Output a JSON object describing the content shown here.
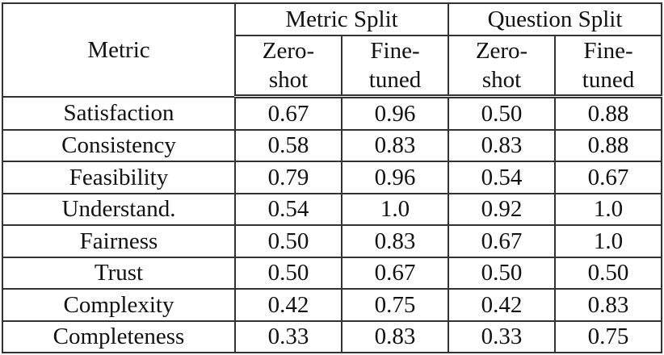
{
  "table": {
    "header": {
      "metric_label": "Metric",
      "groups": [
        {
          "label": "Metric Split",
          "sub": [
            "Zero-\nshot",
            "Fine-\ntuned"
          ]
        },
        {
          "label": "Question Split",
          "sub": [
            "Zero-\nshot",
            "Fine-\ntuned"
          ]
        }
      ],
      "sub_lines": {
        "zero_1": "Zero-",
        "zero_2": "shot",
        "fine_1": "Fine-",
        "fine_2": "tuned"
      }
    },
    "rows": [
      {
        "metric": "Satisfaction",
        "values": [
          "0.67",
          "0.96",
          "0.50",
          "0.88"
        ],
        "bold": [
          false,
          true,
          false,
          true
        ]
      },
      {
        "metric": "Consistency",
        "values": [
          "0.58",
          "0.83",
          "0.83",
          "0.88"
        ],
        "bold": [
          false,
          false,
          false,
          false
        ]
      },
      {
        "metric": "Feasibility",
        "values": [
          "0.79",
          "0.96",
          "0.54",
          "0.67"
        ],
        "bold": [
          false,
          false,
          false,
          false
        ]
      },
      {
        "metric": "Understand.",
        "values": [
          "0.54",
          "1.0",
          "0.92",
          "1.0"
        ],
        "bold": [
          false,
          true,
          false,
          false
        ]
      },
      {
        "metric": "Fairness",
        "values": [
          "0.50",
          "0.83",
          "0.67",
          "1.0"
        ],
        "bold": [
          false,
          true,
          false,
          true
        ]
      },
      {
        "metric": "Trust",
        "values": [
          "0.50",
          "0.67",
          "0.50",
          "0.50"
        ],
        "bold": [
          false,
          false,
          false,
          false
        ]
      },
      {
        "metric": "Complexity",
        "values": [
          "0.42",
          "0.75",
          "0.42",
          "0.83"
        ],
        "bold": [
          false,
          true,
          false,
          true
        ]
      },
      {
        "metric": "Completeness",
        "values": [
          "0.33",
          "0.83",
          "0.33",
          "0.75"
        ],
        "bold": [
          false,
          true,
          false,
          true
        ]
      }
    ]
  }
}
